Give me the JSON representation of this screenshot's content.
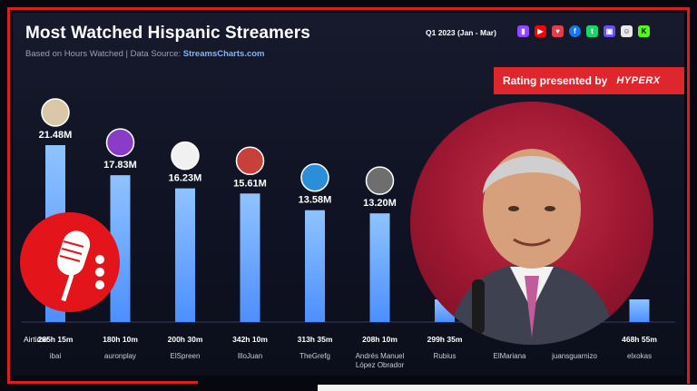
{
  "header": {
    "title": "Most Watched Hispanic Streamers",
    "subtitle_prefix": "Based on Hours Watched  |  Data Source: ",
    "source": "StreamsCharts.com",
    "period": "Q1 2023 (Jan - Mar)",
    "platform_icons": [
      "twitch-icon",
      "youtube-icon",
      "heart-icon",
      "facebook-icon",
      "trovo-icon",
      "twitch-purple-icon",
      "ghost-icon",
      "kick-icon"
    ]
  },
  "banner": {
    "text": "Rating presented by",
    "brand": "HYPERX"
  },
  "airtime_label": "Airtime:",
  "colors": {
    "bar_top": "#8fc3ff",
    "bar_bottom": "#4c8fff",
    "accent": "#e0262d"
  },
  "chart_data": {
    "type": "bar",
    "title": "Most Watched Hispanic Streamers",
    "categories": [
      "ibai",
      "auronplay",
      "ElSpreen",
      "IlloJuan",
      "TheGrefg",
      "Andrés Manuel López Obrador",
      "Rubius",
      "ElMariana",
      "juansguarnizo",
      "elxokas"
    ],
    "values": [
      21.48,
      17.83,
      16.23,
      15.61,
      13.58,
      13.2,
      null,
      null,
      null,
      null
    ],
    "value_labels": [
      "21.48M",
      "17.83M",
      "16.23M",
      "15.61M",
      "13.58M",
      "13.20M",
      "",
      "",
      "",
      ""
    ],
    "airtime": [
      "285h 15m",
      "180h 10m",
      "200h 30m",
      "342h 10m",
      "313h 35m",
      "208h 10m",
      "299h 35m",
      "",
      "",
      "468h 55m"
    ],
    "unit": "M hours watched"
  }
}
